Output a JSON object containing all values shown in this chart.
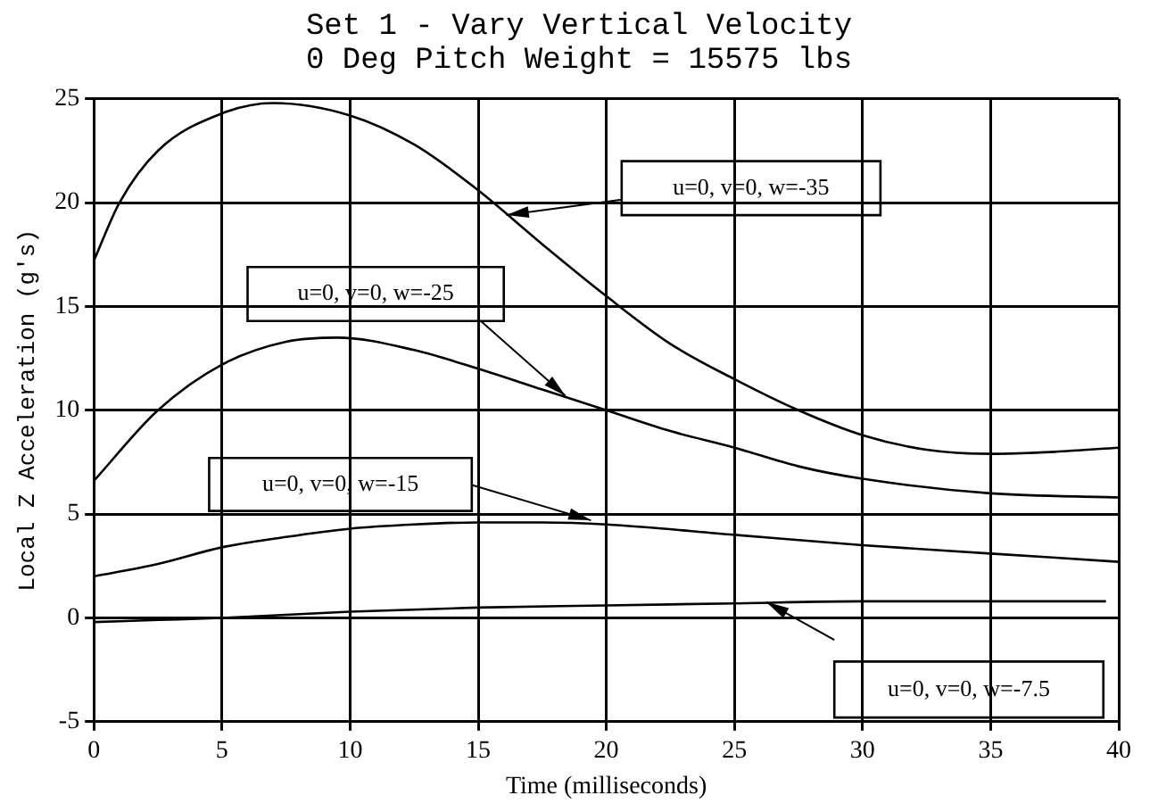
{
  "chart_data": {
    "type": "line",
    "title": "Set 1 - Vary Vertical Velocity",
    "subtitle": "0 Deg Pitch Weight = 15575 lbs",
    "xlabel": "Time (milliseconds)",
    "ylabel": "Local Z Acceleration (g's)",
    "xlim": [
      0,
      40
    ],
    "xticks": [
      0,
      5,
      10,
      15,
      20,
      25,
      30,
      35,
      40
    ],
    "ylim": [
      -5,
      25
    ],
    "yticks": [
      -5,
      0,
      5,
      10,
      15,
      20,
      25
    ],
    "grid": true,
    "legend": false,
    "marker": "none",
    "line_style": "solid",
    "annotations": [
      "u=0, v=0, w=-35",
      "u=0, v=0, w=-25",
      "u=0, v=0, w=-15",
      "u=0, v=0, w=-7.5"
    ],
    "series": [
      {
        "color": "#000000",
        "x": [
          0,
          1,
          2.5,
          5,
          7,
          10,
          12.5,
          15,
          17.5,
          20,
          22.5,
          25,
          27.5,
          30,
          32.5,
          35,
          37.5,
          40
        ],
        "values": [
          17.2,
          20,
          22.5,
          24.3,
          24.8,
          24.2,
          22.8,
          20.6,
          18,
          15.5,
          13.2,
          11.5,
          10,
          8.8,
          8.1,
          7.9,
          8,
          8.2
        ]
      },
      {
        "color": "#000000",
        "x": [
          0,
          2.5,
          5,
          7.5,
          9.5,
          12.5,
          15,
          17.5,
          20,
          22.5,
          25,
          27.5,
          30,
          35,
          40
        ],
        "values": [
          6.6,
          10,
          12.2,
          13.3,
          13.5,
          12.9,
          12,
          11,
          10,
          9,
          8.2,
          7.3,
          6.7,
          6,
          5.8
        ]
      },
      {
        "color": "#000000",
        "x": [
          0,
          2.5,
          5,
          7.5,
          10,
          12.5,
          15,
          17.5,
          20,
          25,
          30,
          35,
          40
        ],
        "values": [
          2,
          2.6,
          3.4,
          3.9,
          4.3,
          4.5,
          4.6,
          4.6,
          4.5,
          4,
          3.5,
          3.1,
          2.7
        ]
      },
      {
        "color": "#000000",
        "x": [
          0,
          2.5,
          5,
          10,
          15,
          20,
          25,
          30,
          35,
          39.5
        ],
        "values": [
          -0.2,
          -0.1,
          0,
          0.3,
          0.5,
          0.6,
          0.7,
          0.8,
          0.8,
          0.8
        ]
      }
    ]
  }
}
